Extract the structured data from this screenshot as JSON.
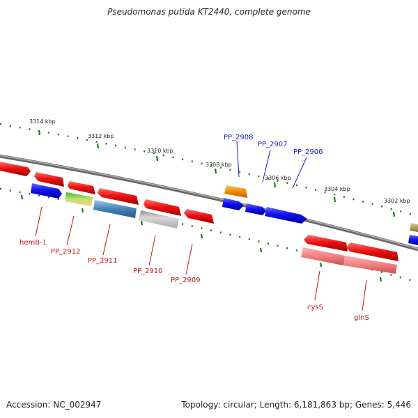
{
  "header": {
    "title": "Pseudomonas putida KT2440, complete genome"
  },
  "footer": {
    "accession": "Accession: NC_002947",
    "topology": "Topology: circular; Length: 6,181,863 bp; Genes: 5,446"
  },
  "ruler": {
    "ticks": [
      "3314 kbp",
      "3312 kbp",
      "3310 kbp",
      "3308 kbp",
      "3306 kbp",
      "3304 kbp",
      "3302 kbp"
    ]
  },
  "gene_labels": {
    "hemB_1": "hemB-1",
    "PP_2912": "PP_2912",
    "PP_2911": "PP_2911",
    "PP_2910": "PP_2910",
    "PP_2909": "PP_2909",
    "PP_2908": "PP_2908",
    "PP_2907": "PP_2907",
    "PP_2906": "PP_2906",
    "cysS": "cysS",
    "glnS": "glnS"
  },
  "colors": {
    "backbone": "#808080",
    "tick": "#1a7a1a",
    "red": "#ee1111",
    "blue": "#1111ee",
    "orange": "#f08c00",
    "steel": "#4682b4",
    "grey": "#c0c0c0",
    "pink": "#f08080",
    "olive": "#b0a060",
    "yellowgreen": "#a8d060"
  }
}
